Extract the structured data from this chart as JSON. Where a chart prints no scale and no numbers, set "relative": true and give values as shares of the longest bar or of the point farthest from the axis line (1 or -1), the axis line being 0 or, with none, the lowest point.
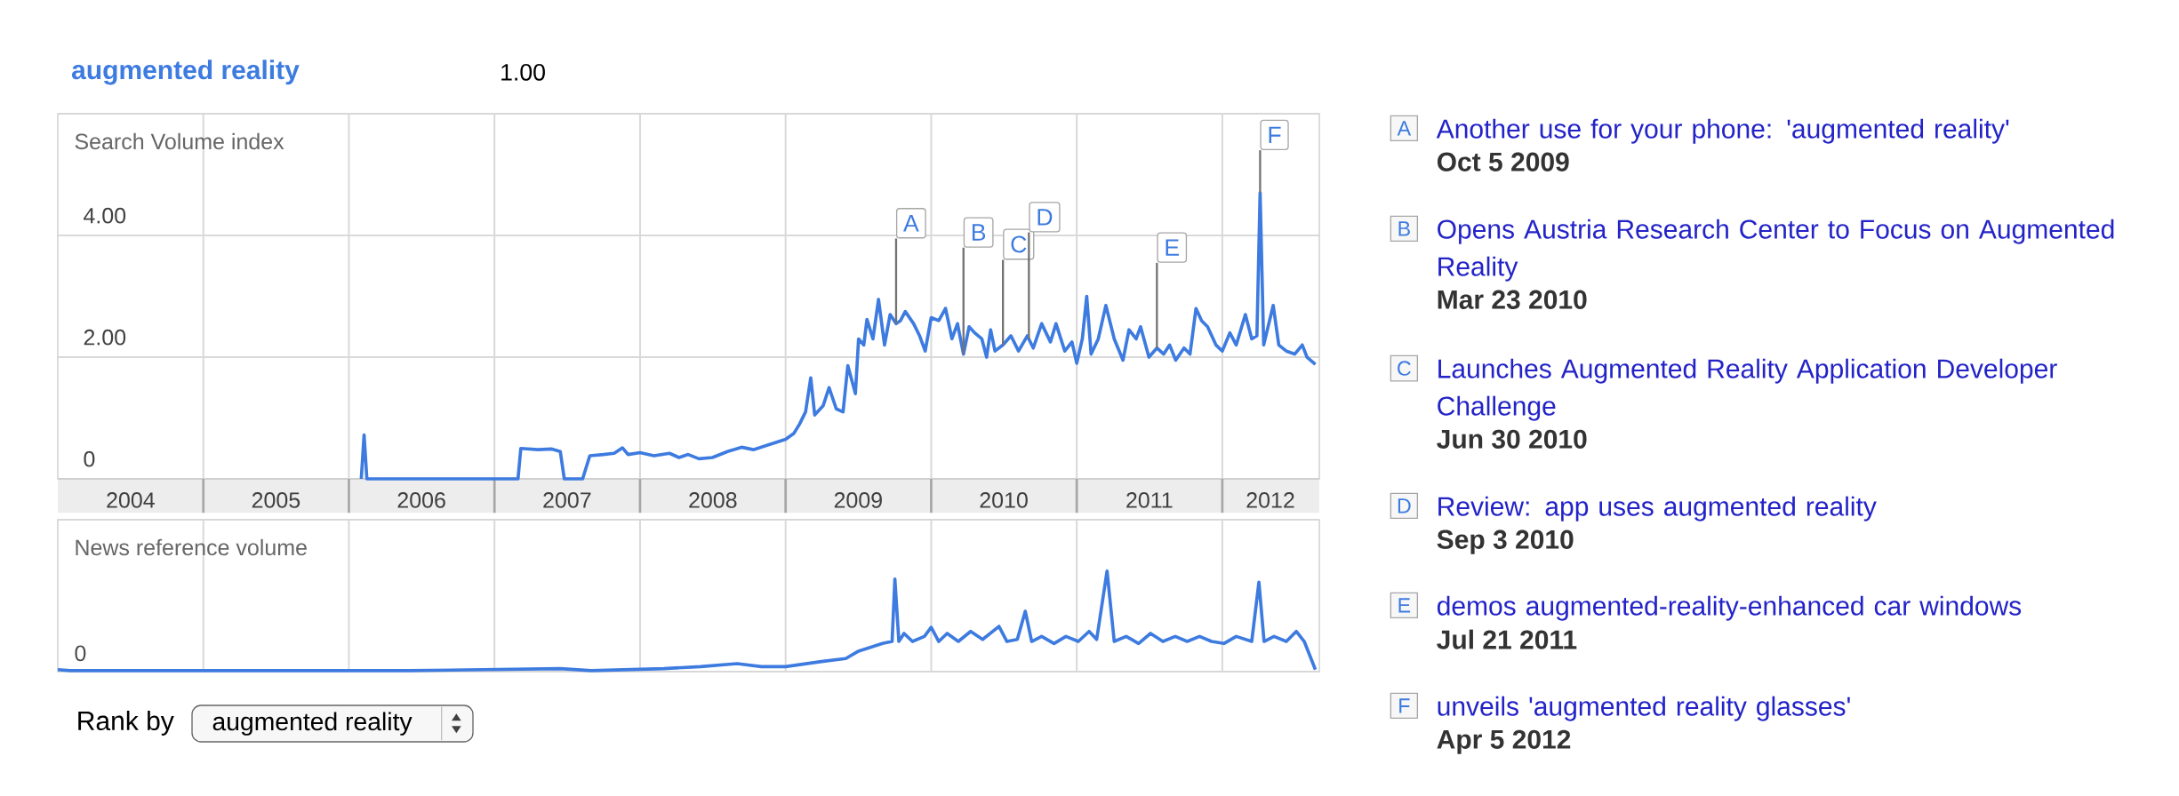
{
  "chart_data": [
    {
      "type": "line",
      "ylabel": "Search Volume index",
      "legend": "top left",
      "grid": true,
      "xlim": [
        "2004-01-01",
        "2012-09-01"
      ],
      "ylim": [
        0,
        6
      ],
      "yticks": [
        {
          "value": 0,
          "label": "0"
        },
        {
          "value": 2,
          "label": "2.00"
        },
        {
          "value": 4,
          "label": "4.00"
        }
      ],
      "xticks": [
        {
          "value": "2004-07-02",
          "label": "2004"
        },
        {
          "value": "2005-07-02",
          "label": "2005"
        },
        {
          "value": "2006-07-02",
          "label": "2006"
        },
        {
          "value": "2007-07-02",
          "label": "2007"
        },
        {
          "value": "2008-07-02",
          "label": "2008"
        },
        {
          "value": "2009-07-02",
          "label": "2009"
        },
        {
          "value": "2010-07-02",
          "label": "2010"
        },
        {
          "value": "2011-07-02",
          "label": "2011"
        },
        {
          "value": "2012-05-01",
          "label": "2012"
        },
        {
          "value": "2005-01-01",
          "label": null
        },
        {
          "value": "2006-01-01",
          "label": null
        },
        {
          "value": "2007-01-01",
          "label": null
        },
        {
          "value": "2008-01-01",
          "label": null
        },
        {
          "value": "2009-01-01",
          "label": null
        },
        {
          "value": "2010-01-01",
          "label": null
        },
        {
          "value": "2011-01-01",
          "label": null
        },
        {
          "value": "2012-01-01",
          "label": null
        }
      ],
      "series": [
        {
          "name": "augmented reality",
          "color": "#3d7be0",
          "x": [
            "2006-02-01",
            "2006-02-08",
            "2006-02-15",
            "2007-03-01",
            "2007-03-08",
            "2007-04-20",
            "2007-05-25",
            "2007-06-15",
            "2007-06-25",
            "2007-08-10",
            "2007-08-28",
            "2007-10-01",
            "2007-10-28",
            "2007-11-18",
            "2007-12-02",
            "2008-01-01",
            "2008-02-05",
            "2008-03-15",
            "2008-04-08",
            "2008-05-01",
            "2008-05-28",
            "2008-07-01",
            "2008-08-08",
            "2008-09-12",
            "2008-10-12",
            "2008-11-15",
            "2009-01-01",
            "2009-01-22",
            "2009-02-05",
            "2009-02-20",
            "2009-03-05",
            "2009-03-15",
            "2009-04-05",
            "2009-04-20",
            "2009-05-08",
            "2009-05-25",
            "2009-06-06",
            "2009-06-25",
            "2009-07-03",
            "2009-07-16",
            "2009-07-24",
            "2009-08-08",
            "2009-08-22",
            "2009-09-06",
            "2009-09-20",
            "2009-10-05",
            "2009-10-16",
            "2009-10-28",
            "2009-11-18",
            "2009-12-03",
            "2009-12-17",
            "2010-01-01",
            "2010-01-20",
            "2010-02-06",
            "2010-02-22",
            "2010-03-08",
            "2010-03-23",
            "2010-04-06",
            "2010-04-20",
            "2010-05-08",
            "2010-05-20",
            "2010-05-30",
            "2010-06-10",
            "2010-06-30",
            "2010-07-20",
            "2010-08-08",
            "2010-08-30",
            "2010-09-14",
            "2010-10-05",
            "2010-10-27",
            "2010-11-10",
            "2010-12-02",
            "2010-12-20",
            "2011-01-01",
            "2011-01-15",
            "2011-01-26",
            "2011-02-06",
            "2011-02-24",
            "2011-03-15",
            "2011-04-05",
            "2011-04-27",
            "2011-05-12",
            "2011-05-30",
            "2011-06-10",
            "2011-07-01",
            "2011-07-21",
            "2011-08-07",
            "2011-08-22",
            "2011-09-06",
            "2011-09-27",
            "2011-10-12",
            "2011-10-27",
            "2011-11-10",
            "2011-11-25",
            "2011-12-16",
            "2012-01-01",
            "2012-01-20",
            "2012-02-05",
            "2012-02-28",
            "2012-03-15",
            "2012-03-28",
            "2012-04-05",
            "2012-04-14",
            "2012-05-08",
            "2012-05-22",
            "2012-06-10",
            "2012-07-01",
            "2012-07-20",
            "2012-08-01",
            "2012-08-22"
          ],
          "values": [
            0,
            0.72,
            0,
            0,
            0.5,
            0.48,
            0.49,
            0.45,
            0,
            0,
            0.38,
            0.4,
            0.42,
            0.51,
            0.4,
            0.43,
            0.38,
            0.42,
            0.35,
            0.4,
            0.33,
            0.35,
            0.45,
            0.52,
            0.48,
            0.55,
            0.65,
            0.75,
            0.9,
            1.1,
            1.66,
            1.05,
            1.2,
            1.5,
            1.15,
            1.1,
            1.86,
            1.4,
            2.3,
            2.2,
            2.62,
            2.3,
            2.95,
            2.2,
            2.7,
            2.55,
            2.6,
            2.75,
            2.55,
            2.35,
            2.1,
            2.65,
            2.6,
            2.8,
            2.3,
            2.55,
            2.05,
            2.5,
            2.4,
            2.3,
            2.0,
            2.45,
            2.1,
            2.2,
            2.35,
            2.1,
            2.35,
            2.15,
            2.55,
            2.25,
            2.55,
            2.1,
            2.25,
            1.9,
            2.3,
            3.0,
            2.05,
            2.3,
            2.85,
            2.3,
            1.95,
            2.45,
            2.3,
            2.5,
            2.0,
            2.15,
            2.05,
            2.2,
            1.95,
            2.15,
            2.05,
            2.8,
            2.6,
            2.5,
            2.2,
            2.1,
            2.4,
            2.2,
            2.7,
            2.3,
            2.35,
            4.7,
            2.2,
            2.85,
            2.2,
            2.1,
            2.05,
            2.2,
            2.0,
            1.88
          ]
        }
      ],
      "annotations": [
        {
          "text": "A",
          "x": "2009-10-05",
          "y": 2.55
        },
        {
          "text": "B",
          "x": "2010-03-23",
          "y": 2.05
        },
        {
          "text": "C",
          "x": "2010-06-30",
          "y": 2.2
        },
        {
          "text": "D",
          "x": "2010-09-03",
          "y": 2.3
        },
        {
          "text": "E",
          "x": "2011-07-21",
          "y": 2.15
        },
        {
          "text": "F",
          "x": "2012-04-05",
          "y": 4.7
        },
        "1.00",
        "Another use for your phone: 'augmented reality'",
        "Opens Austria Research Center to Focus on Augmented Reality",
        "Launches Augmented Reality Application Developer Challenge",
        "Review: app uses augmented reality",
        "demos augmented-reality-enhanced car windows",
        "unveils 'augmented reality glasses'",
        "Oct 5 2009",
        "Mar 23 2010",
        "Jun 30 2010",
        "Sep 3 2010",
        "Jul 21 2011",
        "Apr 5 2012",
        "Rank by",
        "augmented reality"
      ]
    },
    {
      "type": "line",
      "relative": true,
      "ylabel": "News reference volume",
      "grid": "x",
      "tick_labels": false,
      "xlim": [
        "2004-01-01",
        "2012-09-01"
      ],
      "xticks": [
        {
          "value": "2005-01-01",
          "label": null
        },
        {
          "value": "2006-01-01",
          "label": null
        },
        {
          "value": "2007-01-01",
          "label": null
        },
        {
          "value": "2008-01-01",
          "label": null
        },
        {
          "value": "2009-01-01",
          "label": null
        },
        {
          "value": "2010-01-01",
          "label": null
        },
        {
          "value": "2011-01-01",
          "label": null
        },
        {
          "value": "2012-01-01",
          "label": null
        }
      ],
      "series": [
        {
          "color": "#3d7be0",
          "x": [
            "2004-01-01",
            "2004-02-01",
            "2004-09-01",
            "2005-06-01",
            "2006-06-01",
            "2007-06-15",
            "2007-09-01",
            "2008-03-01",
            "2008-06-01",
            "2008-09-01",
            "2008-11-01",
            "2009-01-01",
            "2009-04-01",
            "2009-06-01",
            "2009-07-01",
            "2009-09-01",
            "2009-09-25",
            "2009-10-02",
            "2009-10-12",
            "2009-10-25",
            "2009-11-15",
            "2009-12-15",
            "2010-01-01",
            "2010-01-20",
            "2010-02-10",
            "2010-03-10",
            "2010-04-10",
            "2010-05-10",
            "2010-06-20",
            "2010-07-10",
            "2010-08-05",
            "2010-08-25",
            "2010-09-10",
            "2010-10-05",
            "2010-11-05",
            "2010-12-05",
            "2011-01-05",
            "2011-02-01",
            "2011-02-20",
            "2011-03-18",
            "2011-04-05",
            "2011-05-05",
            "2011-06-05",
            "2011-07-05",
            "2011-08-05",
            "2011-09-05",
            "2011-10-05",
            "2011-11-05",
            "2011-12-05",
            "2012-01-05",
            "2012-02-05",
            "2012-03-15",
            "2012-04-02",
            "2012-04-15",
            "2012-05-10",
            "2012-06-10",
            "2012-07-05",
            "2012-07-25",
            "2012-08-22"
          ],
          "values": [
            0.02,
            0.01,
            0.01,
            0.01,
            0.01,
            0.03,
            0.01,
            0.03,
            0.05,
            0.08,
            0.05,
            0.05,
            0.1,
            0.13,
            0.2,
            0.28,
            0.3,
            0.92,
            0.3,
            0.38,
            0.3,
            0.35,
            0.44,
            0.3,
            0.38,
            0.3,
            0.4,
            0.32,
            0.45,
            0.3,
            0.32,
            0.6,
            0.3,
            0.35,
            0.28,
            0.35,
            0.3,
            0.4,
            0.32,
            1.0,
            0.3,
            0.35,
            0.28,
            0.38,
            0.3,
            0.35,
            0.3,
            0.35,
            0.3,
            0.28,
            0.35,
            0.3,
            0.89,
            0.3,
            0.35,
            0.3,
            0.4,
            0.3,
            0.02
          ]
        }
      ],
      "annotations": [
        "0"
      ]
    }
  ]
}
